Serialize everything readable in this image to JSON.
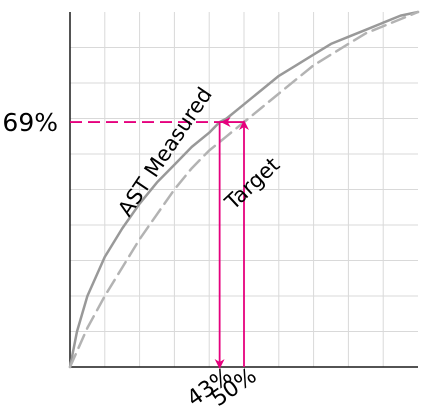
{
  "chart_data": {
    "type": "line",
    "title": "",
    "xlabel": "",
    "ylabel": "",
    "xlim": [
      0,
      100
    ],
    "ylim": [
      0,
      100
    ],
    "grid": true,
    "x_gridlines": 10,
    "y_gridlines": 10,
    "series": [
      {
        "name": "AST Measured",
        "style": "solid",
        "color": "#999999",
        "x": [
          0,
          2,
          5,
          10,
          15,
          20,
          25,
          30,
          35,
          40,
          43,
          45,
          50,
          55,
          60,
          65,
          70,
          75,
          80,
          85,
          90,
          95,
          100
        ],
        "y": [
          0,
          10,
          20,
          31,
          39,
          46,
          52,
          57,
          62,
          66,
          69,
          70,
          74,
          78,
          82,
          85,
          88,
          91,
          93,
          95,
          97,
          99,
          100
        ]
      },
      {
        "name": "Target",
        "style": "dashed",
        "color": "#b3b3b3",
        "x": [
          0,
          5,
          10,
          15,
          20,
          25,
          30,
          35,
          40,
          45,
          50,
          55,
          60,
          65,
          70,
          75,
          80,
          85,
          90,
          95,
          100
        ],
        "y": [
          0,
          11,
          20,
          28,
          36,
          43,
          50,
          56,
          61,
          65,
          69,
          73,
          77,
          81,
          85,
          88,
          91,
          94,
          96,
          98,
          100
        ]
      }
    ],
    "annotations": {
      "color": "#e5007d",
      "y_value": 69,
      "y_label": "69%",
      "x_values": [
        43,
        50
      ],
      "x_labels": [
        "43%",
        "50%"
      ]
    }
  }
}
